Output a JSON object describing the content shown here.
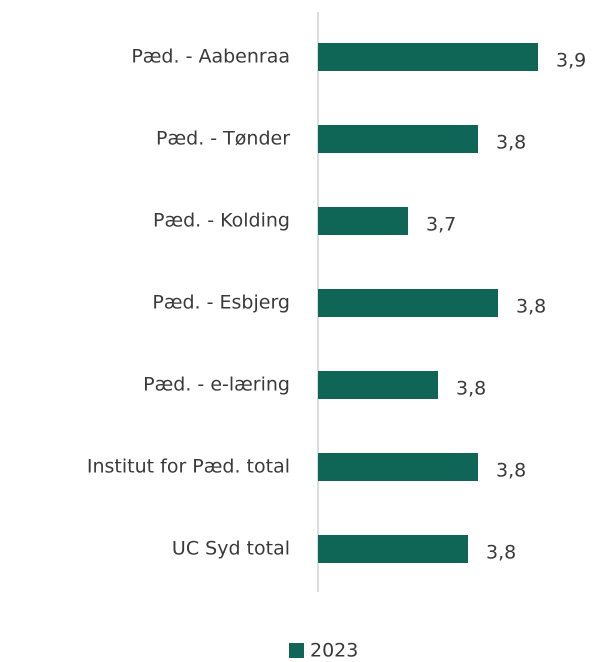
{
  "chart_data": {
    "type": "bar",
    "orientation": "horizontal",
    "categories": [
      "Pæd. - Aabenraa",
      "Pæd. - Tønder",
      "Pæd. - Kolding",
      "Pæd. - Esbjerg",
      "Pæd. - e-læring",
      "Institut for Pæd. total",
      "UC Syd total"
    ],
    "series": [
      {
        "name": "2023",
        "color": "#0f6657",
        "values": [
          3.86,
          3.8,
          3.73,
          3.82,
          3.76,
          3.8,
          3.79
        ],
        "value_labels": [
          "3,9",
          "3,8",
          "3,7",
          "3,8",
          "3,8",
          "3,8",
          "3,8"
        ]
      }
    ],
    "xlim": [
      3.64,
      3.92
    ]
  }
}
